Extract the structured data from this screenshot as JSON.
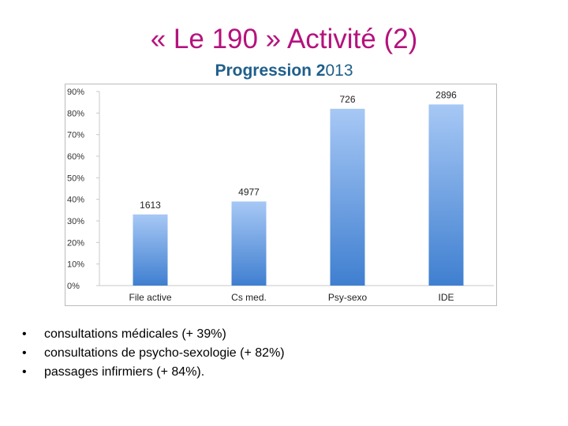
{
  "slide": {
    "title": "« Le 190 » Activité (2)",
    "subtitle_bold": "Progression 2",
    "subtitle_rest": "013"
  },
  "chart_data": {
    "type": "bar",
    "categories": [
      "File active",
      "Cs med.",
      "Psy-sexo",
      "IDE"
    ],
    "values": [
      33,
      39,
      82,
      84
    ],
    "data_labels": [
      "1613",
      "4977",
      "726",
      "2896"
    ],
    "y_ticks": [
      "0%",
      "10%",
      "20%",
      "30%",
      "40%",
      "50%",
      "60%",
      "70%",
      "80%",
      "90%"
    ],
    "ylim": [
      0,
      90
    ],
    "unit": "%",
    "title": "Progression 2013",
    "xlabel": "",
    "ylabel": "",
    "grid": false,
    "legend": "none",
    "colors": {
      "bar_top": "#a7c8f5",
      "bar_bottom": "#3f7fd0",
      "frame": "#bbbbbb"
    }
  },
  "bullets": [
    {
      "marker": "•",
      "text": "consultations médicales (+ 39%)"
    },
    {
      "marker": "•",
      "text": "consultations de psycho-sexologie (+ 82%)"
    },
    {
      "marker": "•",
      "text": "passages infirmiers (+ 84%)."
    }
  ]
}
